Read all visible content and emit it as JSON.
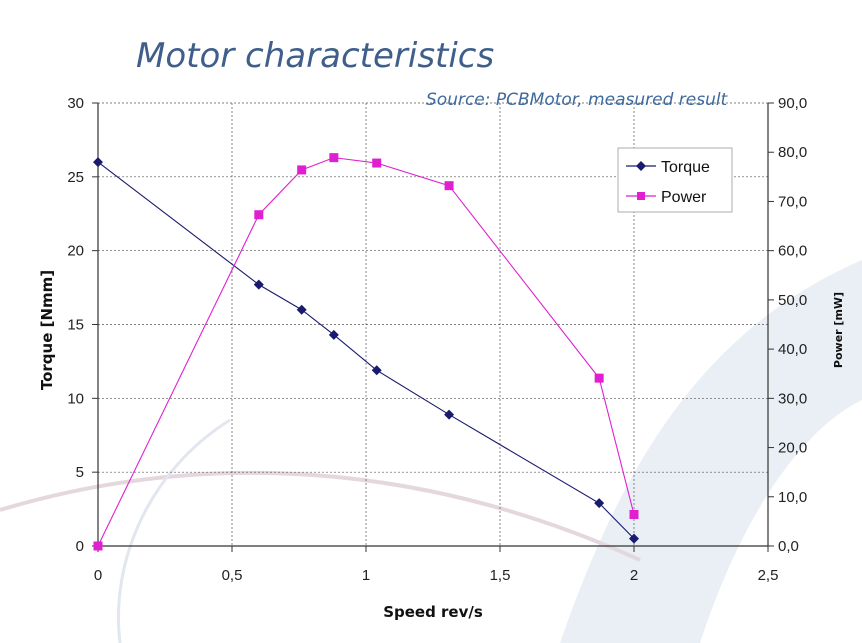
{
  "chart_data": {
    "type": "line",
    "title": "Motor characteristics",
    "subtitle": "Source: PCBMotor, measured result",
    "xlabel": "Speed rev/s",
    "ylabel": "Torque [Nmm]",
    "y2label": "Power [mW]",
    "xlim": [
      0,
      2.5
    ],
    "ylim": [
      0,
      30
    ],
    "y2lim": [
      0,
      90
    ],
    "x_ticks": [
      "0",
      "0,5",
      "1",
      "1,5",
      "2",
      "2,5"
    ],
    "y_ticks": [
      "0",
      "5",
      "10",
      "15",
      "20",
      "25",
      "30"
    ],
    "y2_ticks": [
      "0,0",
      "10,0",
      "20,0",
      "30,0",
      "40,0",
      "50,0",
      "60,0",
      "70,0",
      "80,0",
      "90,0"
    ],
    "grid": true,
    "legend_position": "top-right",
    "series": [
      {
        "name": "Torque",
        "axis": "left",
        "color": "#1a1a6e",
        "marker": "diamond",
        "x": [
          0,
          0.6,
          0.76,
          0.88,
          1.04,
          1.31,
          1.87,
          2.0
        ],
        "y": [
          26.0,
          17.7,
          16.0,
          14.3,
          11.9,
          8.9,
          2.9,
          0.5
        ]
      },
      {
        "name": "Power",
        "axis": "right",
        "color": "#e020d0",
        "marker": "square",
        "x": [
          0,
          0.6,
          0.76,
          0.88,
          1.04,
          1.31,
          1.87,
          2.0
        ],
        "y": [
          0.0,
          67.3,
          76.4,
          78.9,
          77.8,
          73.2,
          34.1,
          6.4
        ]
      }
    ]
  }
}
